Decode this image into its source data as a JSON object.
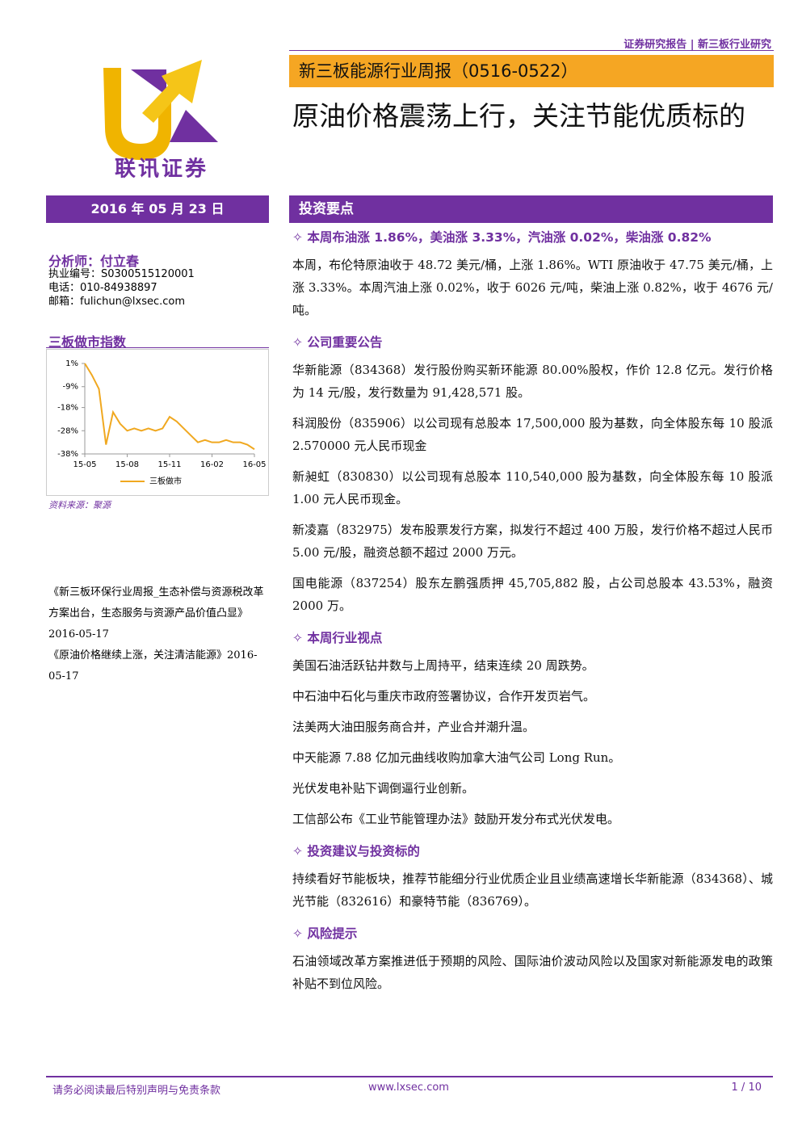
{
  "header": {
    "top_right": "证券研究报告 | 新三板行业研究",
    "logo_text": "联讯证券",
    "report_name": "新三板能源行业周报（0516-0522）",
    "title": "原油价格震荡上行，关注节能优质标的"
  },
  "sidebar": {
    "date": "2016 年 05 月 23 日",
    "analyst": "分析师：付立春",
    "contact": [
      "执业编号：S0300515120001",
      "电话：010-84938897",
      "邮箱：fulichun@lxsec.com"
    ],
    "chart_title": "三板做市指数",
    "chart": {
      "type": "line",
      "categories": [
        "15-05",
        null,
        null,
        null,
        null,
        null,
        "15-08",
        null,
        null,
        null,
        null,
        null,
        "15-11",
        null,
        null,
        null,
        null,
        null,
        "16-02",
        null,
        null,
        null,
        null,
        null,
        "16-05"
      ],
      "series": [
        {
          "name": "三板做市",
          "color": "#f0a820",
          "values": [
            1,
            -4,
            -10,
            -34,
            -20,
            -25,
            -28,
            -27,
            -28,
            -27,
            -28,
            -27,
            -22,
            -24,
            -27,
            -30,
            -33,
            -32,
            -33,
            -33,
            -32,
            -33,
            -33,
            -34,
            -36
          ]
        }
      ],
      "ylim": [
        -38,
        1
      ],
      "yticks": [
        {
          "value": 1,
          "label": "1%"
        },
        {
          "value": -9,
          "label": "-9%"
        },
        {
          "value": -18,
          "label": "-18%"
        },
        {
          "value": -28,
          "label": "-28%"
        },
        {
          "value": -38,
          "label": "-38%"
        }
      ],
      "legend": "bottom"
    },
    "source": "资料来源：聚源",
    "related": [
      "《新三板环保行业周报_生态补偿与资源税改革方案出台，生态服务与资源产品价值凸显》2016-05-17",
      "《原油价格继续上涨，关注清洁能源》2016-05-17"
    ]
  },
  "main": {
    "section_title": "投资要点",
    "sections": [
      {
        "heading": "✧ 本周布油涨 1.86%，美油涨 3.33%，汽油涨 0.02%，柴油涨 0.82%",
        "paragraphs": [
          "本周，布伦特原油收于 48.72 美元/桶，上涨 1.86%。WTI 原油收于 47.75 美元/桶，上涨 3.33%。本周汽油上涨 0.02%，收于 6026 元/吨，柴油上涨 0.82%，收于 4676 元/吨。"
        ]
      },
      {
        "heading": "✧ 公司重要公告",
        "paragraphs": [
          "华新能源（834368）发行股份购买新环能源 80.00%股权，作价 12.8 亿元。发行价格为 14 元/股，发行数量为 91,428,571 股。",
          "科润股份（835906）以公司现有总股本 17,500,000 股为基数，向全体股东每 10 股派 2.570000 元人民币现金",
          "新昶虹（830830）以公司现有总股本 110,540,000 股为基数，向全体股东每 10 股派 1.00 元人民币现金。",
          "新凌嘉（832975）发布股票发行方案，拟发行不超过 400 万股，发行价格不超过人民币 5.00 元/股，融资总额不超过 2000 万元。",
          "国电能源（837254）股东左鹏强质押 45,705,882 股，占公司总股本 43.53%，融资 2000 万。"
        ]
      },
      {
        "heading": "✧ 本周行业视点",
        "paragraphs": [
          "美国石油活跃钻井数与上周持平，结束连续 20 周跌势。",
          "中石油中石化与重庆市政府签署协议，合作开发页岩气。",
          "法美两大油田服务商合并，产业合并潮升温。",
          "中天能源 7.88 亿加元曲线收购加拿大油气公司 Long Run。",
          "光伏发电补贴下调倒逼行业创新。",
          "工信部公布《工业节能管理办法》鼓励开发分布式光伏发电。"
        ]
      },
      {
        "heading": "✧ 投资建议与投资标的",
        "paragraphs": [
          "持续看好节能板块，推荐节能细分行业优质企业且业绩高速增长华新能源（834368）、城光节能（832616）和豪特节能（836769）。"
        ]
      },
      {
        "heading": "✧ 风险提示",
        "paragraphs": [
          "石油领域改革方案推进低于预期的风险、国际油价波动风险以及国家对新能源发电的政策补贴不到位风险。"
        ]
      }
    ]
  },
  "footer": {
    "disclaimer": "请务必阅读最后特别声明与免责条款",
    "website": "www.lxsec.com",
    "page": "1 / 10"
  }
}
